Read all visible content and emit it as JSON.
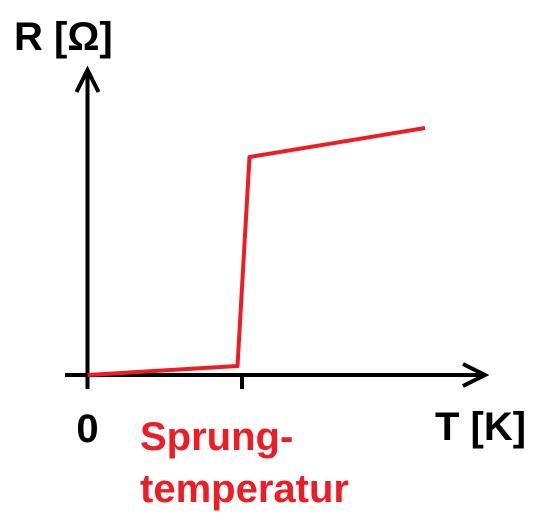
{
  "chart_data": {
    "type": "line",
    "y_label": "R [Ω]",
    "x_label": "T [K]",
    "x": [
      0,
      1,
      1.08,
      2.25
    ],
    "series": [
      {
        "color": "#ee1c25",
        "values": [
          0,
          0.09,
          2.18,
          2.47
        ]
      }
    ],
    "xlim": [
      -0.15,
      2.65
    ],
    "ylim": [
      0,
      3.05
    ],
    "xticks": [
      0,
      {
        "value": 1.03,
        "label": [
          "Sprung-",
          "temperatur"
        ]
      }
    ],
    "tick_label_colors": [
      "#000000",
      "#ee1c25"
    ],
    "grid": false
  }
}
